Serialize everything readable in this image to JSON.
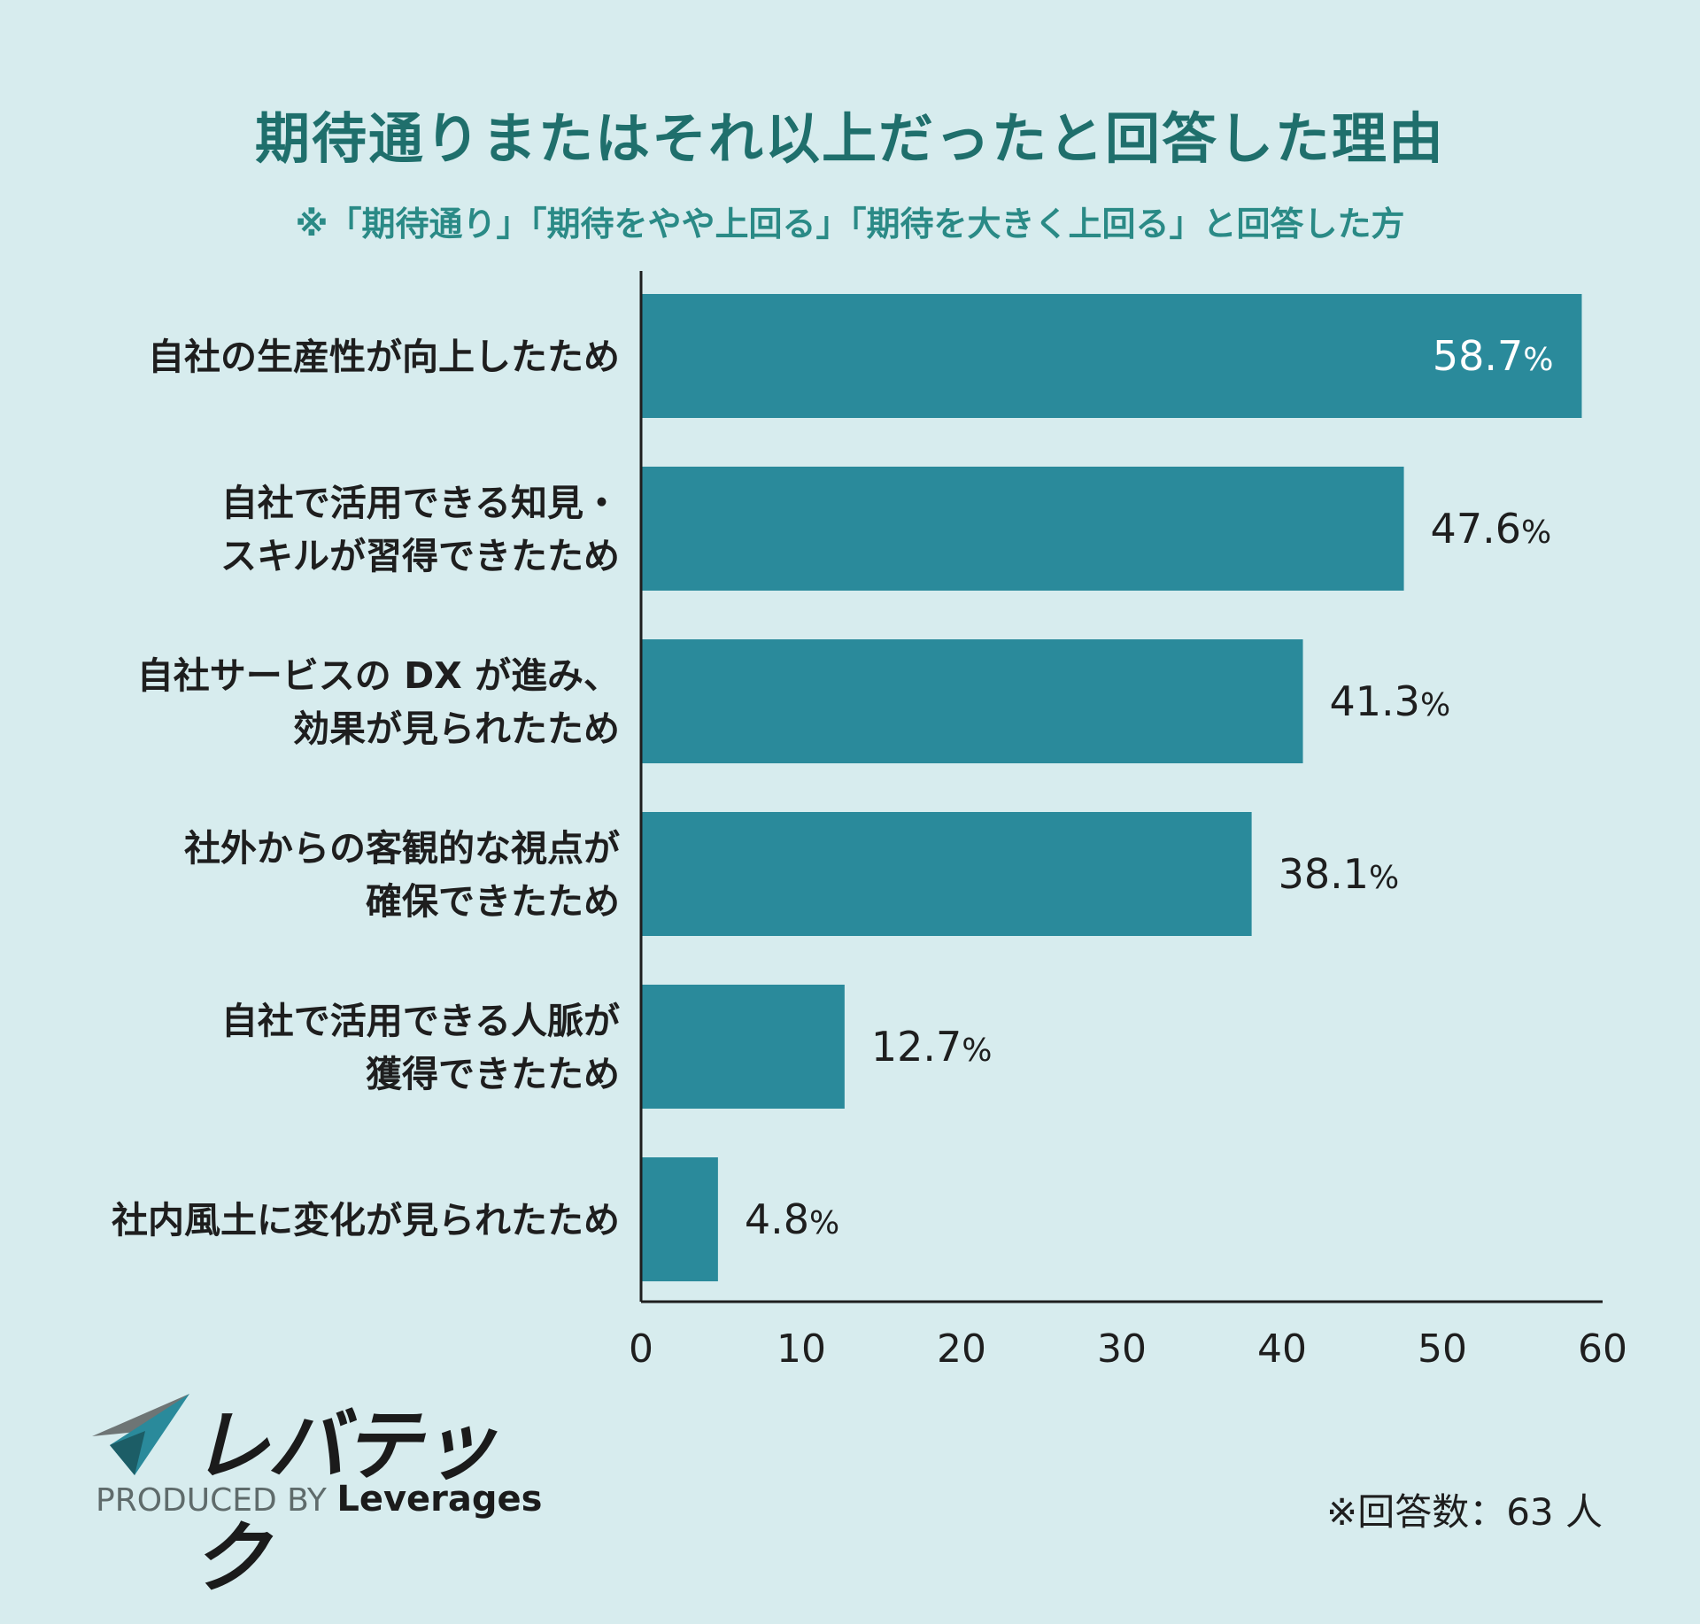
{
  "title": "期待通りまたはそれ以上だったと回答した理由",
  "subtitle": "※「期待通り」「期待をやや上回る」「期待を大きく上回る」と回答した方",
  "colors": {
    "bar": "#2a8a9b",
    "background": "#d7ecee",
    "title": "#1f6f6c"
  },
  "chart_data": {
    "type": "bar",
    "orientation": "horizontal",
    "categories": [
      [
        "自社の生産性が向上したため"
      ],
      [
        "自社で活用できる知見・",
        "スキルが習得できたため"
      ],
      [
        "自社サービスの DX が進み、",
        "効果が見られたため"
      ],
      [
        "社外からの客観的な視点が",
        "確保できたため"
      ],
      [
        "自社で活用できる人脈が",
        "獲得できたため"
      ],
      [
        "社内風土に変化が見られたため"
      ]
    ],
    "values": [
      58.7,
      47.6,
      41.3,
      38.1,
      12.7,
      4.8
    ],
    "value_labels": [
      "58.7",
      "47.6",
      "41.3",
      "38.1",
      "12.7",
      "4.8"
    ],
    "unit": "%",
    "xlim": [
      0,
      60
    ],
    "xticks": [
      "0",
      "10",
      "20",
      "30",
      "40",
      "50",
      "60"
    ],
    "grid": false,
    "legend": "none"
  },
  "logo": {
    "text": "レバテック",
    "produced_by": "PRODUCED BY",
    "brand": "Leverages"
  },
  "note": "※回答数：63 人"
}
